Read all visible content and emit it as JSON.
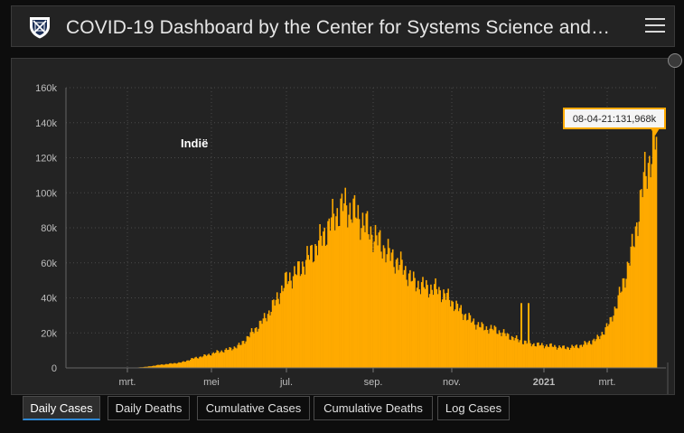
{
  "header": {
    "title": "COVID-19 Dashboard by the Center for Systems Science and…"
  },
  "tabs": [
    {
      "label": "Daily Cases",
      "active": true
    },
    {
      "label": "Daily Deaths",
      "active": false
    },
    {
      "label": "Cumulative Cases",
      "active": false
    },
    {
      "label": "Cumulative Deaths",
      "active": false
    },
    {
      "label": "Log Cases",
      "active": false
    }
  ],
  "colors": {
    "bar": "#ffaa00",
    "tooltip_bg": "#f5f5f5",
    "tooltip_border": "#ffaa00",
    "active_tab_underline": "#2e88d4"
  },
  "chart_data": {
    "type": "bar",
    "country_label": "Indië",
    "ylim": [
      0,
      160000
    ],
    "yticks": [
      "0",
      "20k",
      "40k",
      "60k",
      "80k",
      "100k",
      "120k",
      "140k",
      "160k"
    ],
    "xticks": [
      "mrt.",
      "mei",
      "jul.",
      "sep.",
      "nov.",
      "2021",
      "mrt."
    ],
    "grid": true,
    "tooltip": "08-04-21:131,968k",
    "series": [
      {
        "values_per_10_days": [
          0,
          0,
          0,
          0,
          20,
          40,
          200,
          700,
          1700,
          2400,
          3200,
          5500,
          7000,
          9000,
          10500,
          13000,
          20000,
          27000,
          37000,
          50000,
          55000,
          64000,
          73000,
          85000,
          93000,
          88000,
          80000,
          72000,
          64000,
          58000,
          49000,
          46000,
          45000,
          40000,
          33000,
          27000,
          23000,
          22000,
          19000,
          16000,
          14000,
          13000,
          12500,
          11500,
          12000,
          14000,
          17000,
          26000,
          45000,
          70000,
          110000,
          131968
        ]
      }
    ]
  }
}
